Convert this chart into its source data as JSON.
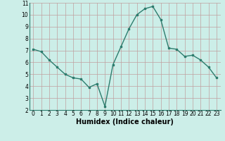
{
  "x": [
    0,
    1,
    2,
    3,
    4,
    5,
    6,
    7,
    8,
    9,
    10,
    11,
    12,
    13,
    14,
    15,
    16,
    17,
    18,
    19,
    20,
    21,
    22,
    23
  ],
  "y": [
    7.1,
    6.9,
    6.2,
    5.6,
    5.0,
    4.7,
    4.6,
    3.9,
    4.2,
    2.3,
    5.8,
    7.3,
    8.8,
    10.0,
    10.5,
    10.7,
    9.6,
    7.2,
    7.1,
    6.5,
    6.6,
    6.2,
    5.6,
    4.7
  ],
  "line_color": "#2d7d6e",
  "marker": "s",
  "markersize": 2,
  "linewidth": 1.0,
  "bg_color": "#cceee8",
  "grid_color": "#c0a0a0",
  "xlabel": "Humidex (Indice chaleur)",
  "xlim": [
    -0.5,
    23.5
  ],
  "ylim": [
    2,
    11
  ],
  "yticks": [
    2,
    3,
    4,
    5,
    6,
    7,
    8,
    9,
    10,
    11
  ],
  "xticks": [
    0,
    1,
    2,
    3,
    4,
    5,
    6,
    7,
    8,
    9,
    10,
    11,
    12,
    13,
    14,
    15,
    16,
    17,
    18,
    19,
    20,
    21,
    22,
    23
  ],
  "tick_fontsize": 5.5,
  "xlabel_fontsize": 7
}
